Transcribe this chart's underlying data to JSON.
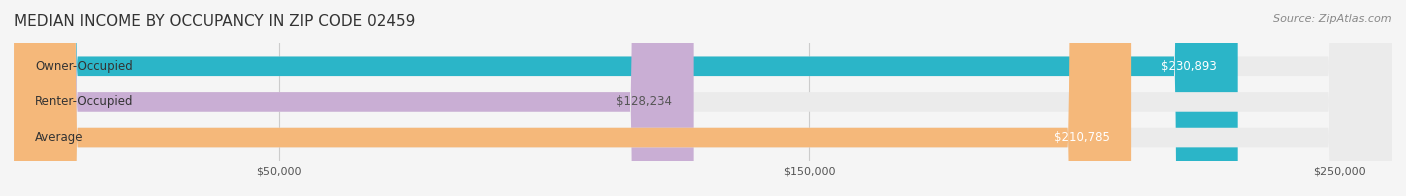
{
  "title": "MEDIAN INCOME BY OCCUPANCY IN ZIP CODE 02459",
  "source": "Source: ZipAtlas.com",
  "categories": [
    "Owner-Occupied",
    "Renter-Occupied",
    "Average"
  ],
  "values": [
    230893,
    128234,
    210785
  ],
  "bar_colors": [
    "#2bb5c8",
    "#c9aed4",
    "#f5b87a"
  ],
  "bar_edge_colors": [
    "#2bb5c8",
    "#c9aed4",
    "#f5b87a"
  ],
  "value_labels": [
    "$230,893",
    "$128,234",
    "$210,785"
  ],
  "value_label_colors": [
    "#ffffff",
    "#555555",
    "#ffffff"
  ],
  "xlim": [
    0,
    260000
  ],
  "xticks": [
    0,
    50000,
    150000,
    250000
  ],
  "xtick_labels": [
    "",
    "$50,000",
    "$150,000",
    "$250,000"
  ],
  "bg_color": "#f5f5f5",
  "bar_bg_color": "#ebebeb",
  "title_fontsize": 11,
  "source_fontsize": 8,
  "label_fontsize": 8.5,
  "value_fontsize": 8.5,
  "bar_height": 0.55,
  "fig_width": 14.06,
  "fig_height": 1.96
}
